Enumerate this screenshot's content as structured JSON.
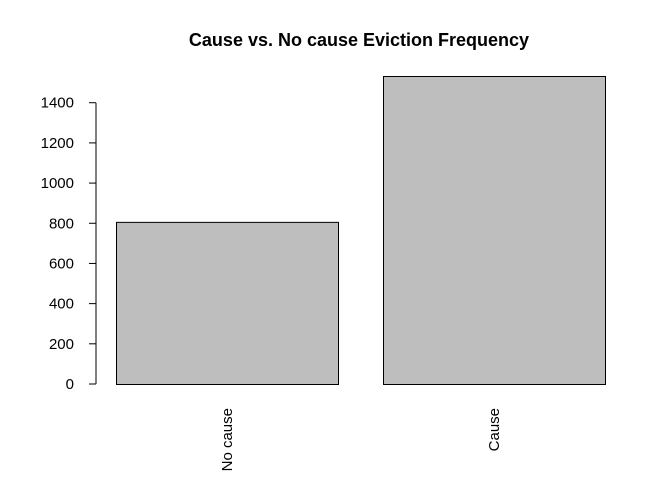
{
  "chart_data": {
    "type": "bar",
    "title": "Cause vs. No cause Eviction Frequency",
    "xlabel": "",
    "ylabel": "",
    "categories": [
      "No cause",
      "Cause"
    ],
    "values": [
      807,
      1533
    ],
    "ylim": [
      0,
      1533
    ],
    "yticks": [
      0,
      200,
      400,
      600,
      800,
      1000,
      1200,
      1400
    ],
    "grid": false,
    "legend": "none",
    "colors": {
      "bar_fill": "#bebebe",
      "bar_stroke": "#000000",
      "axis": "#000000",
      "background": "#ffffff"
    }
  }
}
